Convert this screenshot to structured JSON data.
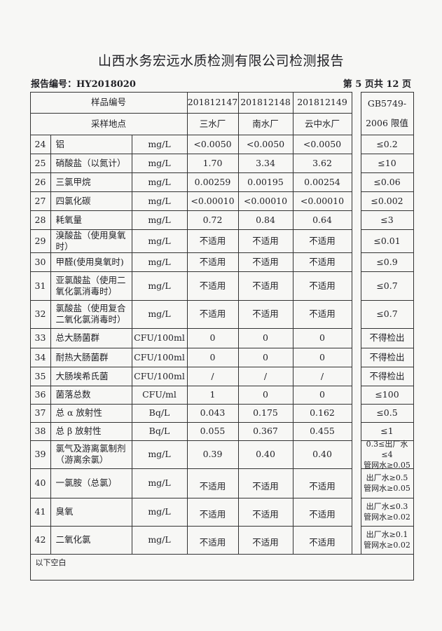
{
  "title": "山西水务宏远水质检测有限公司检测报告",
  "report_no": "报告编号：HY2018020",
  "page_info": "第 5 页共 12 页",
  "header": {
    "sample_no_label": "样品编号",
    "sample_site_label": "采样地点",
    "limit_label": "GB5749-\n2006 限值",
    "samples": [
      {
        "no": "201812147",
        "site": "三水厂"
      },
      {
        "no": "201812148",
        "site": "南水厂"
      },
      {
        "no": "201812149",
        "site": "云中水厂"
      }
    ]
  },
  "rows": [
    {
      "no": "24",
      "item": "铝",
      "unit": "mg/L",
      "v": [
        "<0.0050",
        "<0.0050",
        "<0.0050"
      ],
      "limit": "≤0.2"
    },
    {
      "no": "25",
      "item": "硝酸盐（以氮计）",
      "unit": "mg/L",
      "v": [
        "1.70",
        "3.34",
        "3.62"
      ],
      "limit": "≤10"
    },
    {
      "no": "26",
      "item": "三氯甲烷",
      "unit": "mg/L",
      "v": [
        "0.00259",
        "0.00195",
        "0.00254"
      ],
      "limit": "≤0.06"
    },
    {
      "no": "27",
      "item": "四氯化碳",
      "unit": "mg/L",
      "v": [
        "<0.00010",
        "<0.00010",
        "<0.00010"
      ],
      "limit": "≤0.002"
    },
    {
      "no": "28",
      "item": "耗氧量",
      "unit": "mg/L",
      "v": [
        "0.72",
        "0.84",
        "0.64"
      ],
      "limit": "≤3"
    },
    {
      "no": "29",
      "item": "溴酸盐（使用臭氧时）",
      "unit": "mg/L",
      "v": [
        "不适用",
        "不适用",
        "不适用"
      ],
      "limit": "≤0.01"
    },
    {
      "no": "30",
      "item": "甲醛(使用臭氧时)",
      "unit": "mg/L",
      "v": [
        "不适用",
        "不适用",
        "不适用"
      ],
      "limit": "≤0.9"
    },
    {
      "no": "31",
      "item": "亚氯酸盐（使用二氧化氯消毒时）",
      "unit": "mg/L",
      "v": [
        "不适用",
        "不适用",
        "不适用"
      ],
      "limit": "≤0.7"
    },
    {
      "no": "32",
      "item": "氯酸盐（使用复合二氧化氯消毒时）",
      "unit": "mg/L",
      "v": [
        "不适用",
        "不适用",
        "不适用"
      ],
      "limit": "≤0.7"
    },
    {
      "no": "33",
      "item": "总大肠菌群",
      "unit": "CFU/100ml",
      "v": [
        "0",
        "0",
        "0"
      ],
      "limit": "不得检出"
    },
    {
      "no": "34",
      "item": "耐热大肠菌群",
      "unit": "CFU/100ml",
      "v": [
        "0",
        "0",
        "0"
      ],
      "limit": "不得检出"
    },
    {
      "no": "35",
      "item": "大肠埃希氏菌",
      "unit": "CFU/100ml",
      "v": [
        "/",
        "/",
        "/"
      ],
      "limit": "不得检出"
    },
    {
      "no": "36",
      "item": "菌落总数",
      "unit": "CFU/ml",
      "v": [
        "1",
        "0",
        "0"
      ],
      "limit": "≤100"
    },
    {
      "no": "37",
      "item": "总 α 放射性",
      "unit": "Bq/L",
      "v": [
        "0.043",
        "0.175",
        "0.162"
      ],
      "limit": "≤0.5"
    },
    {
      "no": "38",
      "item": "总 β 放射性",
      "unit": "Bq/L",
      "v": [
        "0.055",
        "0.367",
        "0.455"
      ],
      "limit": "≤1"
    },
    {
      "no": "39",
      "item": "氯气及游离氯制剂（游离余氯）",
      "unit": "mg/L",
      "v": [
        "0.39",
        "0.40",
        "0.40"
      ],
      "limit": "0.3≤出厂水≤4\n管网水≥0.05"
    },
    {
      "no": "40",
      "item": "一氯胺（总氯）",
      "unit": "mg/L",
      "v": [
        "不适用",
        "不适用",
        "不适用"
      ],
      "limit": "出厂水≥0.5\n管网水≥0.05"
    },
    {
      "no": "41",
      "item": "臭氧",
      "unit": "mg/L",
      "v": [
        "不适用",
        "不适用",
        "不适用"
      ],
      "limit": "出厂水≤0.3\n管网水≥0.02"
    },
    {
      "no": "42",
      "item": "二氧化氯",
      "unit": "mg/L",
      "v": [
        "不适用",
        "不适用",
        "不适用"
      ],
      "limit": "出厂水≥0.1\n管网水≥0.02"
    }
  ],
  "footer_note": "以下空白"
}
